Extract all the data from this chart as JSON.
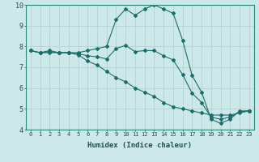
{
  "xlabel": "Humidex (Indice chaleur)",
  "ylabel": "",
  "bg_color": "#cde8e8",
  "grid_color": "#b8d4d4",
  "line_color": "#1a6e6a",
  "xlim": [
    -0.5,
    23.5
  ],
  "ylim": [
    4,
    10
  ],
  "xticks": [
    0,
    1,
    2,
    3,
    4,
    5,
    6,
    7,
    8,
    9,
    10,
    11,
    12,
    13,
    14,
    15,
    16,
    17,
    18,
    19,
    20,
    21,
    22,
    23
  ],
  "yticks": [
    4,
    5,
    6,
    7,
    8,
    9,
    10
  ],
  "line1_y": [
    7.8,
    7.7,
    7.8,
    7.7,
    7.7,
    7.7,
    7.8,
    7.9,
    8.0,
    9.3,
    9.8,
    9.5,
    9.8,
    10.0,
    9.8,
    9.6,
    8.3,
    6.6,
    5.8,
    4.5,
    4.3,
    4.5,
    4.9,
    4.9
  ],
  "line2_y": [
    7.8,
    7.7,
    7.7,
    7.7,
    7.7,
    7.6,
    7.3,
    7.1,
    6.8,
    6.5,
    6.3,
    6.0,
    5.8,
    5.6,
    5.3,
    5.1,
    5.0,
    4.9,
    4.8,
    4.7,
    4.7,
    4.7,
    4.8,
    4.9
  ],
  "line3_y": [
    7.8,
    7.7,
    7.75,
    7.7,
    7.7,
    7.65,
    7.55,
    7.5,
    7.4,
    7.9,
    8.05,
    7.75,
    7.8,
    7.8,
    7.55,
    7.35,
    6.65,
    5.75,
    5.3,
    4.6,
    4.5,
    4.6,
    4.85,
    4.9
  ],
  "tick_fontsize": 5.0,
  "xlabel_fontsize": 6.5,
  "marker_size": 2.0
}
